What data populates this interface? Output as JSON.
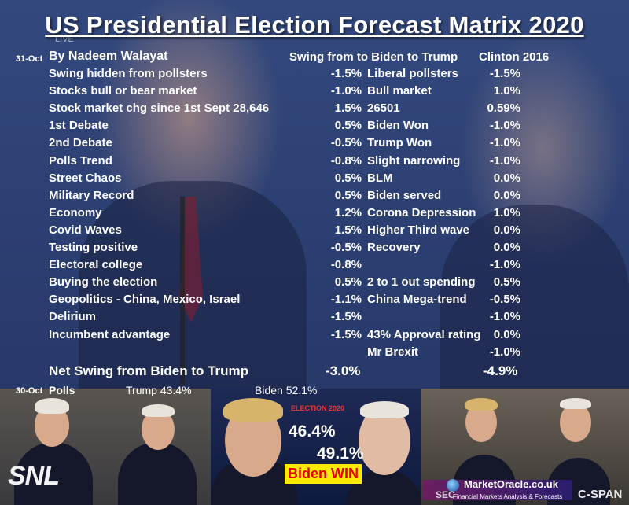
{
  "title": "US Presidential Election Forecast Matrix 2020",
  "watermark_live": "LIVE",
  "date_top": "31-Oct",
  "author": "By Nadeem Walayat",
  "headers": {
    "swing": "Swing from to Biden to Trump",
    "clinton": "Clinton 2016"
  },
  "rows": [
    {
      "label": "Swing hidden from pollsters",
      "swing": "-1.5%",
      "note": "Liberal pollsters",
      "clinton": "-1.5%"
    },
    {
      "label": "Stocks bull or bear market",
      "swing": "-1.0%",
      "note": "Bull market",
      "clinton": "1.0%"
    },
    {
      "label": "Stock market chg since 1st Sept 28,646",
      "swing": "1.5%",
      "note": "26501",
      "clinton": "0.59%"
    },
    {
      "label": "1st Debate",
      "swing": "0.5%",
      "note": "Biden Won",
      "clinton": "-1.0%"
    },
    {
      "label": "2nd Debate",
      "swing": "-0.5%",
      "note": "Trump Won",
      "clinton": "-1.0%"
    },
    {
      "label": "Polls Trend",
      "swing": "-0.8%",
      "note": "Slight narrowing",
      "clinton": "-1.0%"
    },
    {
      "label": "Street Chaos",
      "swing": "0.5%",
      "note": "BLM",
      "clinton": "0.0%"
    },
    {
      "label": "Military Record",
      "swing": "0.5%",
      "note": "Biden served",
      "clinton": "0.0%"
    },
    {
      "label": "Economy",
      "swing": "1.2%",
      "note": "Corona Depression",
      "clinton": "1.0%"
    },
    {
      "label": "Covid Waves",
      "swing": "1.5%",
      "note": "Higher Third wave",
      "clinton": "0.0%"
    },
    {
      "label": "Testing positive",
      "swing": "-0.5%",
      "note": "Recovery",
      "clinton": "0.0%"
    },
    {
      "label": "Electoral college",
      "swing": "-0.8%",
      "note": "",
      "clinton": "-1.0%"
    },
    {
      "label": "Buying the election",
      "swing": "0.5%",
      "note": "2 to 1 out spending",
      "clinton": "0.5%"
    },
    {
      "label": "Geopolitics - China, Mexico, Israel",
      "swing": "-1.1%",
      "note": "China Mega-trend",
      "clinton": "-0.5%"
    },
    {
      "label": "Delirium",
      "swing": "-1.5%",
      "note": "",
      "clinton": "-1.0%"
    },
    {
      "label": "Incumbent advantage",
      "swing": "-1.5%",
      "note": "43% Approval rating",
      "clinton": "0.0%"
    },
    {
      "label": "",
      "swing": "",
      "note": "Mr Brexit",
      "clinton": "-1.0%"
    }
  ],
  "net": {
    "label": "Net Swing from Biden to Trump",
    "swing": "-3.0%",
    "clinton": "-4.9%"
  },
  "polls": {
    "date": "30-Oct",
    "label": "Polls",
    "trump": "Trump 43.4%",
    "biden": "Biden 52.1%"
  },
  "bottom": {
    "snl": "SNL",
    "election_tag": "ELECTION 2020",
    "trump_pct": "46.4%",
    "biden_pct": "49.1%",
    "result": "Biden WIN",
    "brand": "MarketOracle.co.uk",
    "brand_sub": "Financial Markets Analysis & Forecasts",
    "cspan": "C-SPAN",
    "sec": "SEC"
  }
}
